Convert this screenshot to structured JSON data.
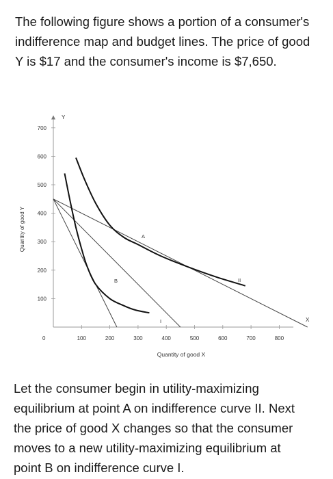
{
  "intro": {
    "lines": [
      "The following figure shows a portion of a consumer's",
      "indifference map and budget lines. The price of good",
      "Y is $17 and the consumer's income is $7,650."
    ]
  },
  "figure": {
    "y_axis_label": "Quantity of good Y",
    "x_axis_label": "Quantity of good X",
    "y_axis_letter": "Y",
    "x_axis_letter": "X",
    "origin_label": "0",
    "point_a": "A",
    "point_b": "B",
    "curve_i_label": "I",
    "curve_ii_label": "II"
  },
  "chart_data": {
    "type": "line",
    "xlabel": "Quantity of good X",
    "ylabel": "Quantity of good Y",
    "xlim": [
      0,
      850
    ],
    "ylim": [
      0,
      720
    ],
    "x_ticks": [
      "100",
      "200",
      "300",
      "400",
      "500",
      "600",
      "700",
      "800"
    ],
    "y_ticks": [
      "100",
      "200",
      "300",
      "400",
      "500",
      "600",
      "700"
    ],
    "budget_lines": [
      {
        "x": [
          0,
          450
        ],
        "y": [
          450,
          0
        ]
      },
      {
        "x": [
          0,
          225
        ],
        "y": [
          450,
          0
        ]
      },
      {
        "x": [
          0,
          900
        ],
        "y": [
          450,
          0
        ]
      }
    ],
    "indifference_curves": [
      {
        "name": "I",
        "x": [
          40,
          60,
          80,
          100,
          120,
          150,
          200,
          250,
          290,
          340
        ],
        "y": [
          540,
          440,
          350,
          275,
          212,
          150,
          100,
          75,
          60,
          50
        ]
      },
      {
        "name": "II",
        "x": [
          80,
          110,
          150,
          200,
          250,
          300,
          380,
          480,
          580,
          680
        ],
        "y": [
          595,
          520,
          435,
          358,
          315,
          290,
          250,
          210,
          175,
          145
        ]
      }
    ],
    "points": [
      {
        "label": "A",
        "x": 300,
        "y": 300
      },
      {
        "label": "B",
        "x": 150,
        "y": 150
      }
    ]
  },
  "outro": {
    "lines": [
      "Let the consumer begin in utility-maximizing",
      "equilibrium at point A on indifference curve II. Next",
      "the price of good X changes so that the consumer",
      "moves to a new utility-maximizing equilibrium at",
      "point B on indifference curve I."
    ]
  }
}
